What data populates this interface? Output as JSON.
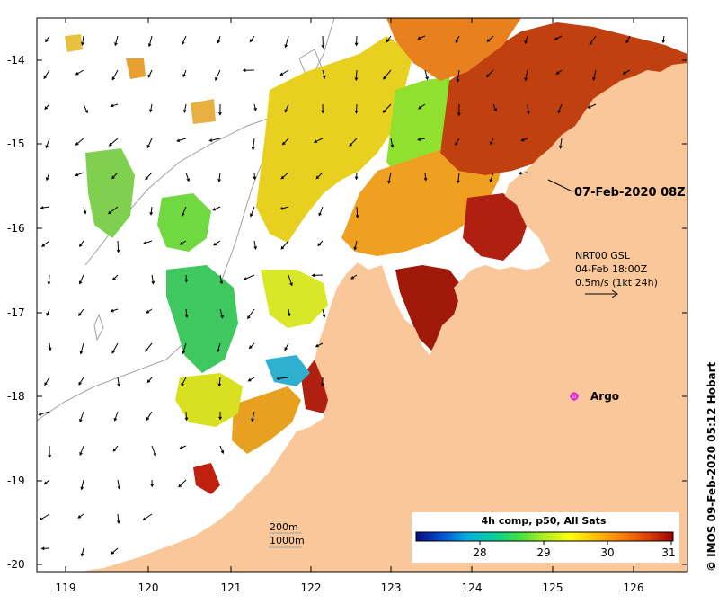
{
  "map": {
    "colors": {
      "land": "#f9c79a",
      "ocean": "#ffffff",
      "frame": "#000000",
      "bathymetry": "#a0a0a0",
      "argo_marker": "#e020e0"
    },
    "lon_ticks": [
      "119",
      "120",
      "121",
      "122",
      "123",
      "124",
      "125",
      "126"
    ],
    "lat_ticks": [
      "-14",
      "-15",
      "-16",
      "-17",
      "-18",
      "-19",
      "-20"
    ],
    "date_label": "07-Feb-2020 08Z",
    "current_info": {
      "line1": "NRT00 GSL",
      "line2": "04-Feb 18:00Z",
      "line3": "0.5m/s (1kt 24h)"
    },
    "argo_label": "Argo",
    "depth_legend": {
      "line1": "200m",
      "line2": "1000m"
    },
    "colorbar": {
      "title": "4h comp, p50, All Sats",
      "tick_labels": [
        "28",
        "29",
        "30",
        "31"
      ],
      "stops": [
        "#0a0a80",
        "#0050d0",
        "#00b0e0",
        "#00d0a0",
        "#40e040",
        "#b0f020",
        "#ffff00",
        "#ffc000",
        "#ff8000",
        "#e04000",
        "#a00000"
      ]
    },
    "credit": "© IMOS 09-Feb-2020 05:12 Hobart"
  }
}
